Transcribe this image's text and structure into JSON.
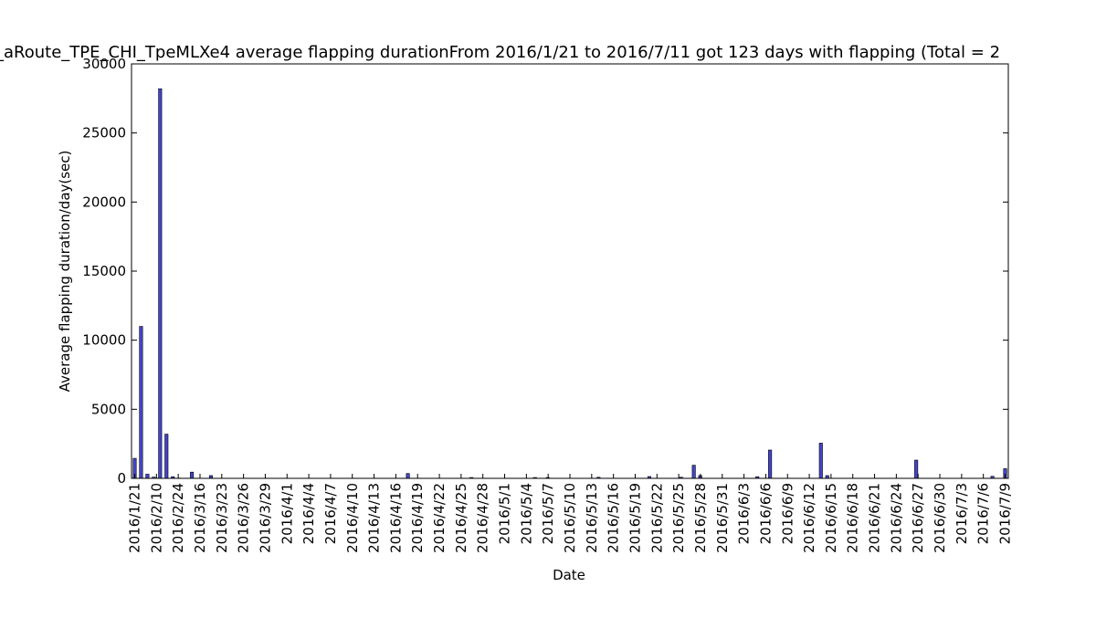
{
  "chart_data": {
    "type": "bar",
    "title": "_aRoute_TPE_CHI_TpeMLXe4 average flapping durationFrom 2016/1/21 to 2016/7/11 got 123 days with flapping (Total = 2",
    "xlabel": "Date",
    "ylabel": "Average flapping duration/day(sec)",
    "ylim": [
      0,
      30000
    ],
    "yticks": [
      0,
      5000,
      10000,
      15000,
      20000,
      25000,
      30000
    ],
    "ytick_labels": [
      "0",
      "5000",
      "10000",
      "15000",
      "20000",
      "25000",
      "30000"
    ],
    "grid": false,
    "bar_color": "#4444cc",
    "xtick_labels": [
      "2016/1/21",
      "2016/2/10",
      "2016/2/24",
      "2016/3/16",
      "2016/3/23",
      "2016/3/26",
      "2016/3/29",
      "2016/4/1",
      "2016/4/4",
      "2016/4/7",
      "2016/4/10",
      "2016/4/13",
      "2016/4/16",
      "2016/4/19",
      "2016/4/22",
      "2016/4/25",
      "2016/4/28",
      "2016/5/1",
      "2016/5/4",
      "2016/5/7",
      "2016/5/10",
      "2016/5/13",
      "2016/5/16",
      "2016/5/19",
      "2016/5/22",
      "2016/5/25",
      "2016/5/28",
      "2016/5/31",
      "2016/6/3",
      "2016/6/6",
      "2016/6/9",
      "2016/6/12",
      "2016/6/15",
      "2016/6/18",
      "2016/6/21",
      "2016/6/24",
      "2016/6/27",
      "2016/6/30",
      "2016/7/3",
      "2016/7/6",
      "2016/7/9"
    ],
    "values": [
      1450,
      11000,
      300,
      90,
      28200,
      3200,
      120,
      20,
      15,
      450,
      10,
      10,
      200,
      10,
      10,
      10,
      10,
      10,
      10,
      10,
      10,
      10,
      10,
      10,
      10,
      10,
      10,
      10,
      10,
      10,
      10,
      10,
      10,
      10,
      10,
      10,
      10,
      10,
      10,
      10,
      10,
      10,
      10,
      350,
      10,
      10,
      10,
      10,
      10,
      10,
      10,
      10,
      10,
      60,
      10,
      10,
      10,
      10,
      10,
      10,
      10,
      10,
      10,
      60,
      10,
      60,
      10,
      10,
      10,
      10,
      10,
      10,
      10,
      80,
      10,
      10,
      10,
      10,
      10,
      10,
      10,
      130,
      10,
      10,
      10,
      10,
      80,
      10,
      950,
      200,
      10,
      10,
      10,
      10,
      10,
      10,
      10,
      10,
      120,
      10,
      2050,
      10,
      10,
      10,
      10,
      10,
      10,
      10,
      2550,
      200,
      10,
      10,
      10,
      10,
      10,
      10,
      10,
      10,
      10,
      10,
      10,
      10,
      10,
      1320,
      10,
      10,
      10,
      10,
      10,
      10,
      10,
      10,
      10,
      10,
      10,
      150,
      10,
      700
    ]
  }
}
